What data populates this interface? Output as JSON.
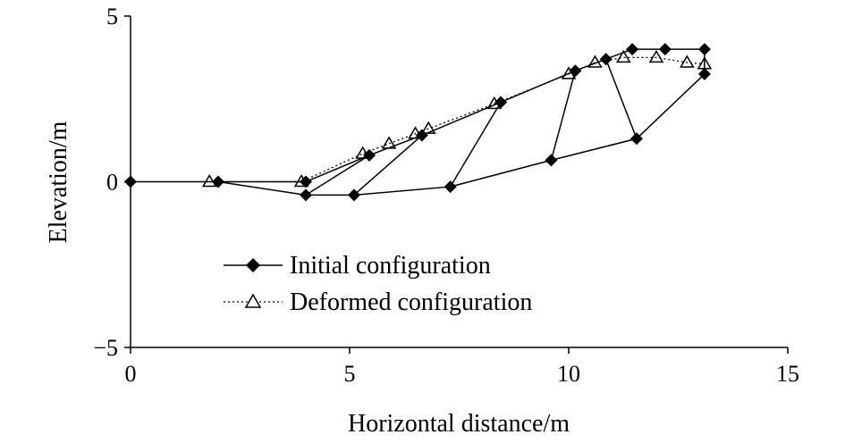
{
  "chart_data": {
    "type": "line",
    "title": "",
    "xlabel": "Horizontal distance/m",
    "ylabel": "Elevation/m",
    "xlim": [
      0,
      15
    ],
    "ylim": [
      -5,
      5
    ],
    "xticks": [
      0,
      5,
      10,
      15
    ],
    "yticks": [
      -5,
      0,
      5
    ],
    "xtick_labels": [
      "0",
      "5",
      "10",
      "15"
    ],
    "ytick_labels": [
      "−5",
      "0",
      "5"
    ],
    "grid": false,
    "legend_position": "bottom-center",
    "series": [
      {
        "name": "Initial configuration",
        "marker": "filled-diamond",
        "line_style": "solid",
        "color": "#000000",
        "polylines": [
          [
            [
              0,
              0
            ],
            [
              2,
              0
            ],
            [
              4,
              -0.4
            ],
            [
              5.1,
              -0.4
            ],
            [
              7.3,
              -0.15
            ],
            [
              9.6,
              0.65
            ],
            [
              11.55,
              1.3
            ],
            [
              13.1,
              3.25
            ],
            [
              13.1,
              4.0
            ],
            [
              12.2,
              4.0
            ],
            [
              11.45,
              4.0
            ],
            [
              10.85,
              3.7
            ],
            [
              10.15,
              3.35
            ],
            [
              8.45,
              2.4
            ],
            [
              6.65,
              1.4
            ],
            [
              5.45,
              0.8
            ],
            [
              4,
              -0.4
            ]
          ],
          [
            [
              5.45,
              0.8
            ],
            [
              4.0,
              0.0
            ],
            [
              2.0,
              0.0
            ]
          ],
          [
            [
              5.1,
              -0.4
            ],
            [
              6.65,
              1.4
            ]
          ],
          [
            [
              7.3,
              -0.15
            ],
            [
              8.45,
              2.4
            ]
          ],
          [
            [
              9.6,
              0.65
            ],
            [
              10.15,
              3.35
            ]
          ],
          [
            [
              10.85,
              3.7
            ],
            [
              11.55,
              1.3
            ]
          ]
        ]
      },
      {
        "name": "Deformed configuration",
        "marker": "open-triangle",
        "line_style": "dotted",
        "color": "#000000",
        "polylines": [
          [
            [
              1.8,
              0
            ],
            [
              3.9,
              0.0
            ],
            [
              5.3,
              0.85
            ],
            [
              5.9,
              1.15
            ],
            [
              6.5,
              1.45
            ],
            [
              6.8,
              1.6
            ],
            [
              8.3,
              2.35
            ],
            [
              10.0,
              3.25
            ],
            [
              10.6,
              3.6
            ],
            [
              11.25,
              3.75
            ],
            [
              12.0,
              3.75
            ],
            [
              12.7,
              3.6
            ],
            [
              13.1,
              3.55
            ]
          ]
        ]
      }
    ]
  }
}
